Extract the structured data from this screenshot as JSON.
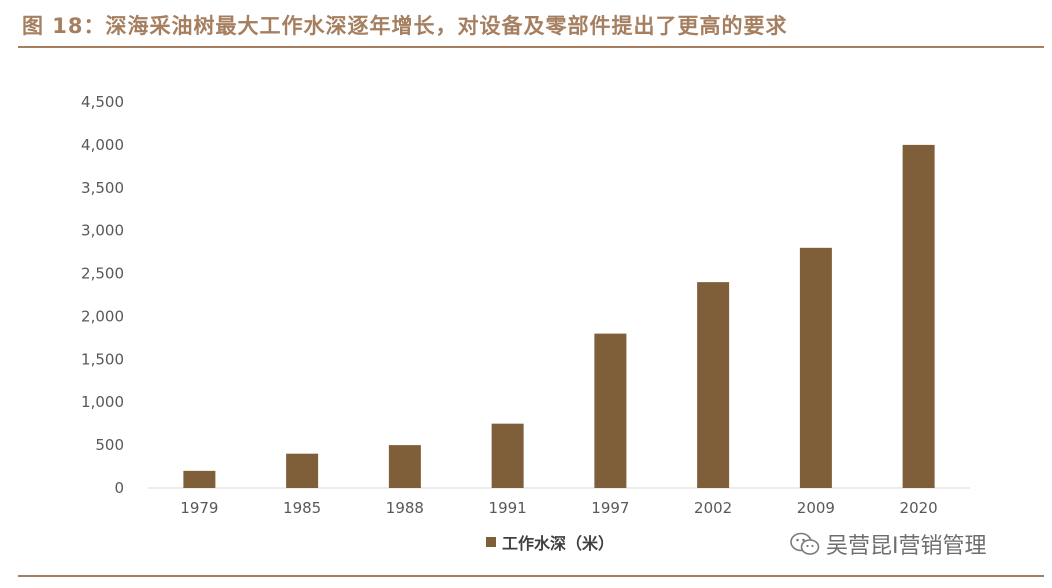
{
  "title": "图 18：深海采油树最大工作水深逐年增长，对设备及零部件提出了更高的要求",
  "watermark": {
    "text": "吴营昆I营销管理",
    "icon": "wechat-icon"
  },
  "colors": {
    "accent": "#a57f60",
    "bar": "#7f5f3a"
  },
  "chart_data": {
    "type": "bar",
    "categories": [
      "1979",
      "1985",
      "1988",
      "1991",
      "1997",
      "2002",
      "2009",
      "2020"
    ],
    "series": [
      {
        "name": "工作水深（米）",
        "values": [
          200,
          400,
          500,
          750,
          1800,
          2400,
          2800,
          4000
        ]
      }
    ],
    "yticks": [
      "0",
      "500",
      "1,000",
      "1,500",
      "2,000",
      "2,500",
      "3,000",
      "3,500",
      "4,000",
      "4,500"
    ],
    "ylim": [
      0,
      4500
    ],
    "grid": false,
    "legend": "bottom"
  }
}
